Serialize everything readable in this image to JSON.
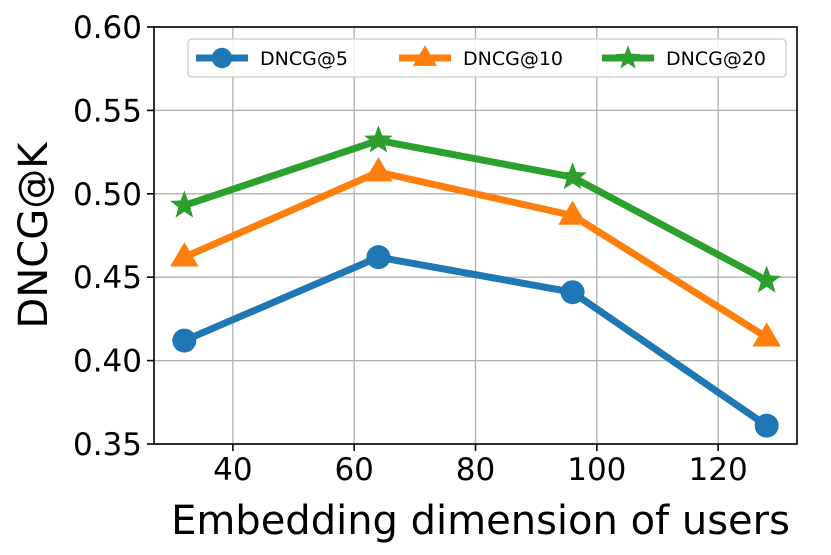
{
  "chart_data": {
    "type": "line",
    "title": "",
    "xlabel": "Embedding dimension of users",
    "ylabel": "DNCG@K",
    "x": [
      32,
      64,
      96,
      128
    ],
    "xlim": [
      27,
      133
    ],
    "ylim": [
      0.35,
      0.6
    ],
    "xticks": [
      40,
      60,
      80,
      100,
      120
    ],
    "yticks": [
      0.35,
      0.4,
      0.45,
      0.5,
      0.55,
      0.6
    ],
    "xtick_labels": [
      "40",
      "60",
      "80",
      "100",
      "120"
    ],
    "ytick_labels": [
      "0.35",
      "0.40",
      "0.45",
      "0.50",
      "0.55",
      "0.60"
    ],
    "grid": true,
    "legend_position": "top",
    "series": [
      {
        "name": "DNCG@5",
        "values": [
          0.412,
          0.462,
          0.441,
          0.361
        ],
        "color": "#1f77b4",
        "marker": "circle"
      },
      {
        "name": "DNCG@10",
        "values": [
          0.462,
          0.513,
          0.487,
          0.414
        ],
        "color": "#ff7f0e",
        "marker": "triangle"
      },
      {
        "name": "DNCG@20",
        "values": [
          0.493,
          0.532,
          0.51,
          0.448
        ],
        "color": "#2ca02c",
        "marker": "star"
      }
    ]
  }
}
